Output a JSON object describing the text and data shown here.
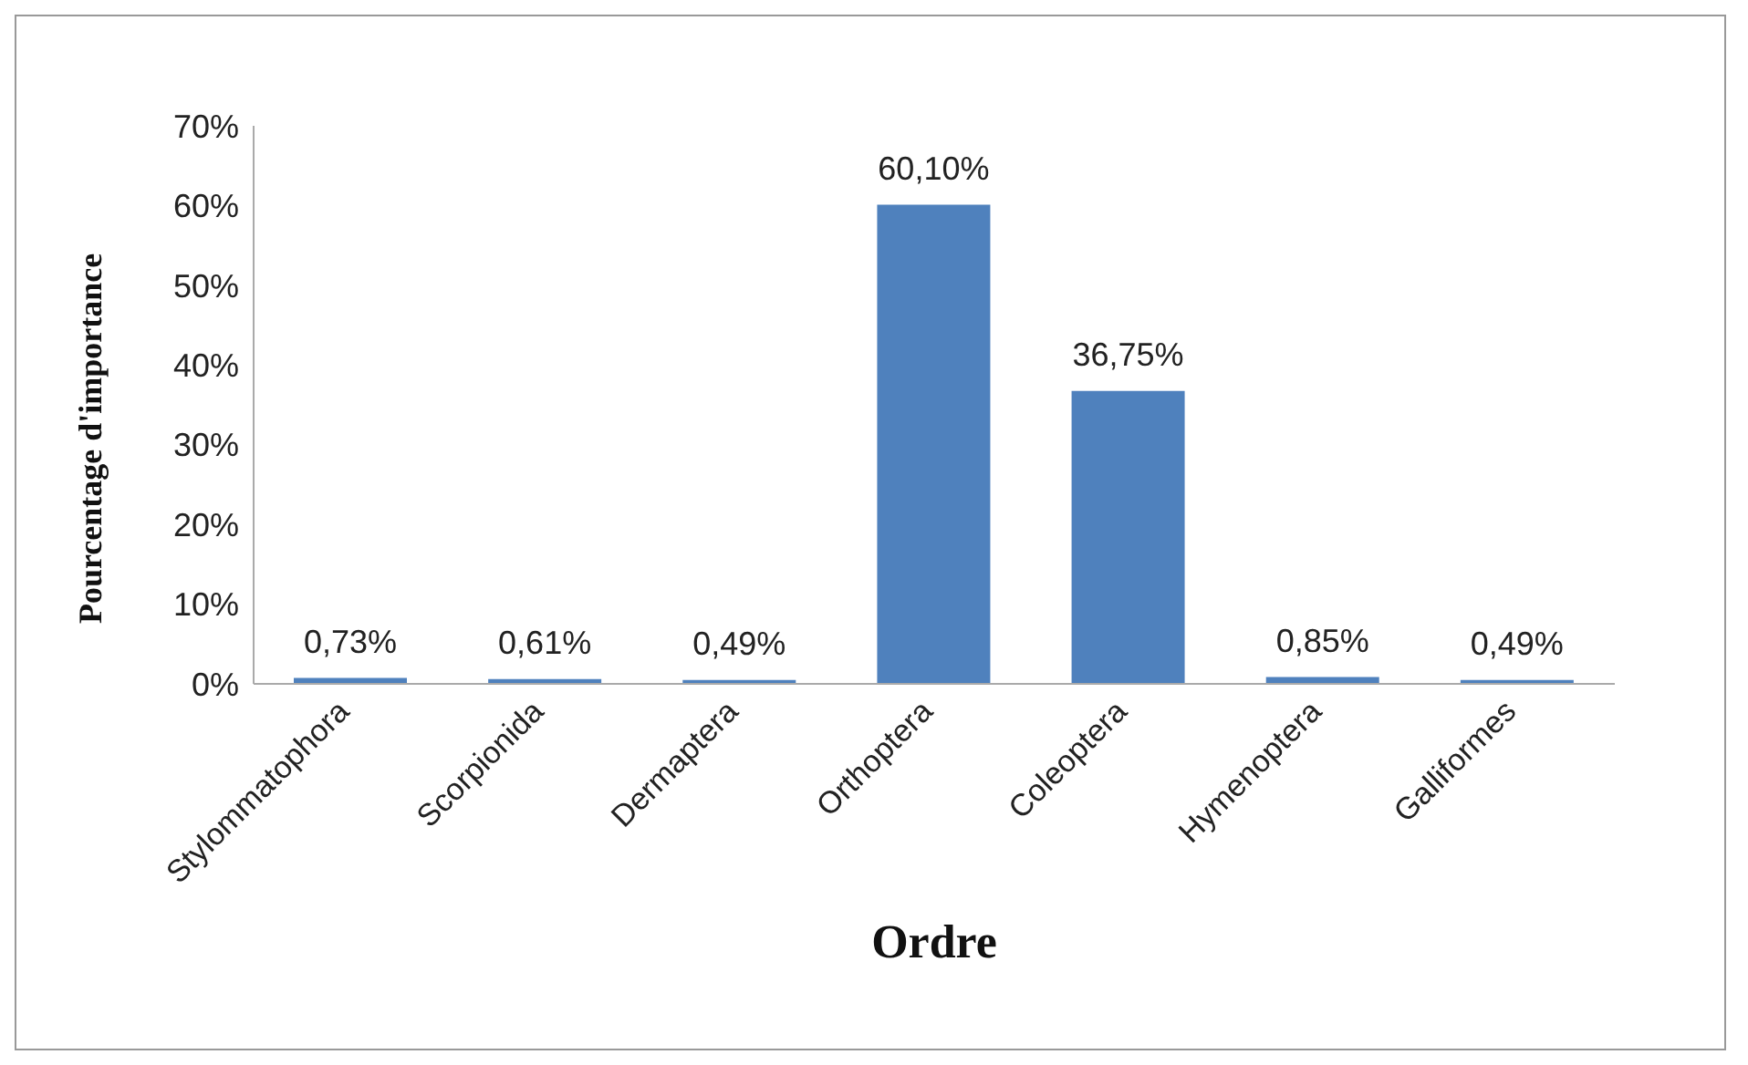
{
  "chart_data": {
    "type": "bar",
    "xlabel": "Ordre",
    "ylabel": "Pourcentage d'importance",
    "categories": [
      "Stylommatophora",
      "Scorpionida",
      "Dermaptera",
      "Orthoptera",
      "Coleoptera",
      "Hymenoptera",
      "Galliformes"
    ],
    "values": [
      0.73,
      0.61,
      0.49,
      60.1,
      36.75,
      0.85,
      0.49
    ],
    "value_labels": [
      "0,73%",
      "0,61%",
      "0,49%",
      "60,10%",
      "36,75%",
      "0,85%",
      "0,49%"
    ],
    "color": "#4f81bd",
    "ylim": [
      0,
      70
    ],
    "yticks": [
      {
        "value": 0,
        "label": "0%"
      },
      {
        "value": 10,
        "label": "10%"
      },
      {
        "value": 20,
        "label": "20%"
      },
      {
        "value": 30,
        "label": "30%"
      },
      {
        "value": 40,
        "label": "40%"
      },
      {
        "value": 50,
        "label": "50%"
      },
      {
        "value": 60,
        "label": "60%"
      },
      {
        "value": 70,
        "label": "70%"
      }
    ],
    "grid": false,
    "legend": false
  }
}
